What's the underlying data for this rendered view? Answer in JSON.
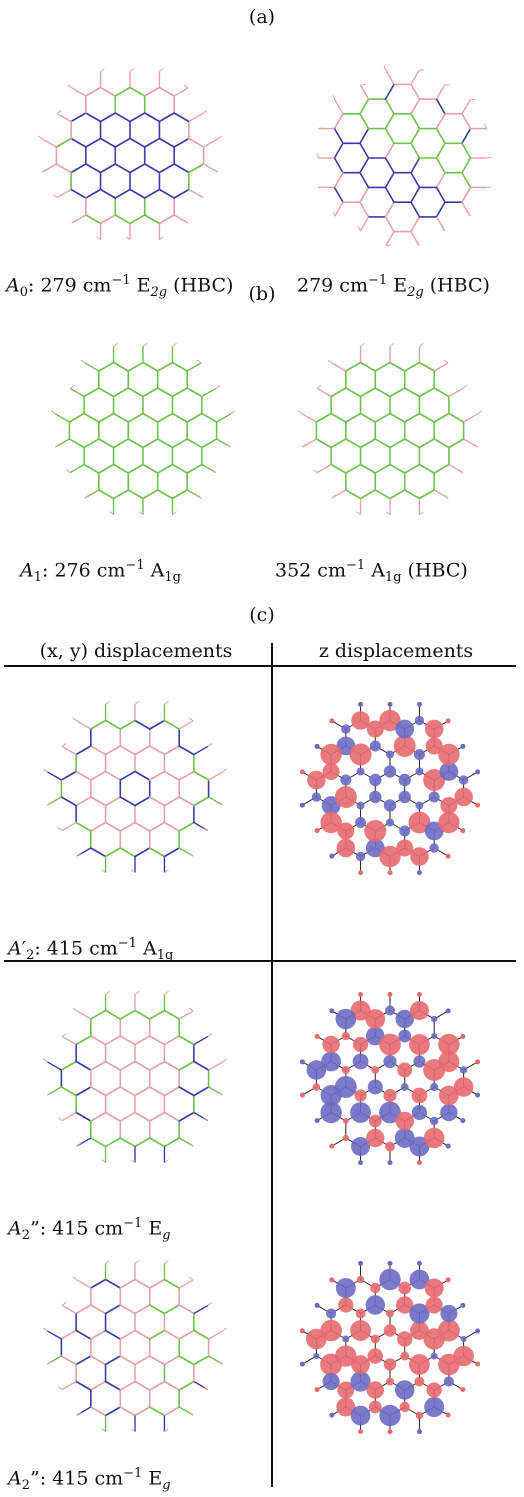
{
  "panel_a": {
    "tag": "(a)",
    "left_caption": {
      "sym": "A",
      "sub": "0",
      "text": ": 279 cm",
      "sup": "−1",
      "irrep": "E",
      "irrep_sub": "2g",
      "tail": " (HBC)"
    },
    "right_caption": {
      "text": "279 cm",
      "sup": "−1",
      "irrep": "E",
      "irrep_sub": "2g",
      "tail": " (HBC)"
    }
  },
  "panel_b": {
    "tag": "(b)",
    "left_caption": {
      "sym": "A",
      "sub": "1",
      "text": ": 276 cm",
      "sup": "−1",
      "irrep": "A",
      "irrep_sub": "1g"
    },
    "right_caption": {
      "text": "352 cm",
      "sup": "−1",
      "irrep": "A",
      "irrep_sub": "1g",
      "tail": " (HBC)"
    }
  },
  "panel_c": {
    "tag": "(c)",
    "col_header_left": "(x, y) displacements",
    "col_header_right": "z displacements",
    "rows": [
      {
        "sym": "A",
        "sym_sup": "′",
        "sub": "2",
        "text": ": 415 cm",
        "sup": "−1",
        "irrep": "A",
        "irrep_sub": "1g"
      },
      {
        "sym": "A",
        "sym_sup": "”",
        "sub": "2",
        "text": ": 415 cm",
        "sup": "−1",
        "irrep": "E",
        "irrep_sub": "g"
      },
      {
        "sym": "A",
        "sym_sup": "”",
        "sub": "2",
        "text": ": 415 cm",
        "sup": "−1",
        "irrep": "E",
        "irrep_sub": "g"
      }
    ]
  },
  "colors": {
    "green": "#6cc24a",
    "blue": "#3a3aaa",
    "pink": "#e8a0a8",
    "red_atom": "#e86a6f",
    "blue_atom": "#6b6bc4",
    "black_bond": "#222222"
  }
}
